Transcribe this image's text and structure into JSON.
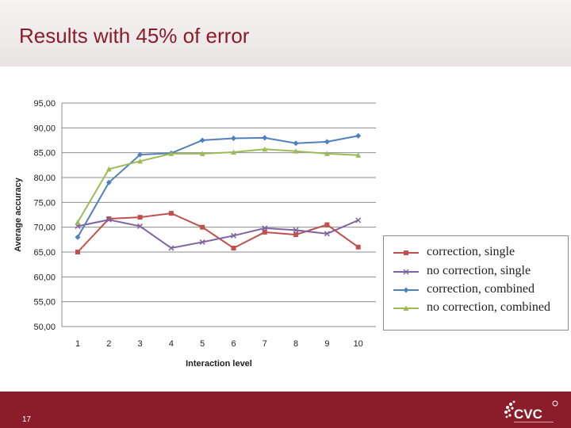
{
  "slide": {
    "title": "Results with 45% of error",
    "page_number": "17"
  },
  "colors": {
    "brand": "#8b1c2a"
  },
  "logo": {
    "text": "CVC",
    "icon": "cvc-logo-icon"
  },
  "chart_data": {
    "type": "line",
    "xlabel": "Interaction level",
    "ylabel": "Average accuracy",
    "x": [
      1,
      2,
      3,
      4,
      5,
      6,
      7,
      8,
      9,
      10
    ],
    "ylim": [
      50,
      95
    ],
    "yticks": [
      "50,00",
      "55,00",
      "60,00",
      "65,00",
      "70,00",
      "75,00",
      "80,00",
      "85,00",
      "90,00",
      "95,00"
    ],
    "xticks": [
      "1",
      "2",
      "3",
      "4",
      "5",
      "6",
      "7",
      "8",
      "9",
      "10"
    ],
    "grid": "horizontal",
    "legend_position": "right",
    "series": [
      {
        "name": "correction, single",
        "color": "#c0504d",
        "marker": "square",
        "values": [
          65.0,
          71.7,
          72.0,
          72.8,
          70.0,
          65.8,
          69.0,
          68.5,
          70.5,
          66.0
        ]
      },
      {
        "name": "no correction, single",
        "color": "#8064a2",
        "marker": "x",
        "values": [
          70.2,
          71.5,
          70.2,
          65.8,
          67.0,
          68.3,
          69.8,
          69.4,
          68.7,
          71.4
        ]
      },
      {
        "name": "correction, combined",
        "color": "#4f81bd",
        "marker": "diamond",
        "values": [
          68.0,
          79.0,
          84.6,
          84.9,
          87.5,
          87.9,
          88.0,
          86.9,
          87.2,
          88.4
        ]
      },
      {
        "name": "no correction, combined",
        "color": "#9bbb59",
        "marker": "triangle",
        "values": [
          71.0,
          81.7,
          83.3,
          84.8,
          84.8,
          85.1,
          85.7,
          85.3,
          84.8,
          84.5
        ]
      }
    ]
  }
}
